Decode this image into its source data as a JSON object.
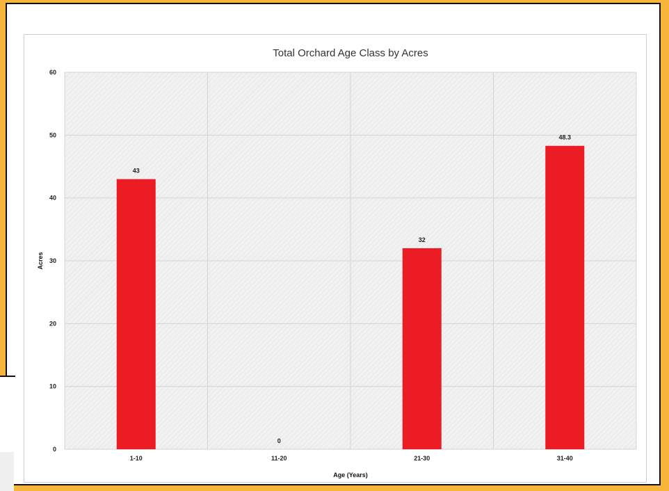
{
  "chart_data": {
    "type": "bar",
    "title": "Total Orchard Age Class by Acres",
    "xlabel": "Age (Years)",
    "ylabel": "Acres",
    "categories": [
      "1-10",
      "11-20",
      "21-30",
      "31-40"
    ],
    "values": [
      43,
      0,
      32,
      48.3
    ],
    "data_labels": [
      "43",
      "0",
      "32",
      "48.3"
    ],
    "ylim": [
      0,
      60
    ],
    "yticks": [
      "0",
      "10",
      "20",
      "30",
      "40",
      "50",
      "60"
    ],
    "grid": true,
    "bar_color": "#ec1c24"
  }
}
